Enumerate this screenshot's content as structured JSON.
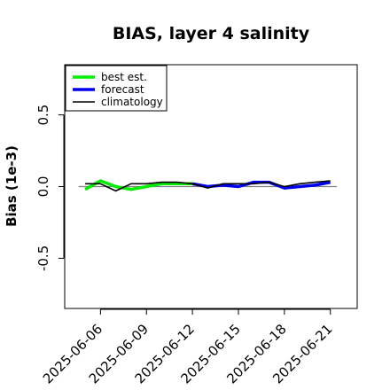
{
  "chart_data": {
    "type": "line",
    "title": "BIAS, layer 4 salinity",
    "xlabel": "",
    "ylabel": "Bias (1e-3)",
    "ylim": [
      -0.85,
      0.85
    ],
    "xlim": [
      "2025-06-03 16:00",
      "2025-06-22 18:00"
    ],
    "yticks": [
      -0.5,
      0.0,
      0.5
    ],
    "ytick_labels": [
      "-0.5",
      "0.0",
      "0.5"
    ],
    "xticks": [
      "2025-06-06",
      "2025-06-09",
      "2025-06-12",
      "2025-06-15",
      "2025-06-18",
      "2025-06-21"
    ],
    "xtick_labels": [
      "2025-06-06",
      "2025-06-09",
      "2025-06-12",
      "2025-06-15",
      "2025-06-18",
      "2025-06-21"
    ],
    "xtick_colors": [
      "#000000",
      "#000000",
      "#228B22",
      "#000000",
      "#000000",
      "#000000"
    ],
    "reference_line": 0.0,
    "legend_position": "top-left",
    "grid": false,
    "x": [
      "2025-06-05",
      "2025-06-06",
      "2025-06-07",
      "2025-06-08",
      "2025-06-09",
      "2025-06-10",
      "2025-06-11",
      "2025-06-12",
      "2025-06-13",
      "2025-06-14",
      "2025-06-15",
      "2025-06-16",
      "2025-06-17",
      "2025-06-18",
      "2025-06-19",
      "2025-06-20",
      "2025-06-21"
    ],
    "series": [
      {
        "name": "best est.",
        "color": "#00ee00",
        "values": [
          -0.02,
          0.04,
          0.0,
          -0.02,
          0.0,
          0.02,
          0.02,
          0.02,
          null,
          null,
          null,
          null,
          null,
          null,
          null,
          null,
          null
        ]
      },
      {
        "name": "forecast",
        "color": "#0000ee",
        "values": [
          null,
          null,
          null,
          null,
          null,
          null,
          null,
          0.02,
          0.0,
          0.01,
          0.0,
          0.03,
          0.03,
          -0.01,
          0.0,
          0.01,
          0.03
        ]
      },
      {
        "name": "climatology",
        "color": "#000000",
        "values": [
          0.02,
          0.02,
          -0.03,
          0.02,
          0.02,
          0.03,
          0.03,
          0.02,
          -0.01,
          0.02,
          0.02,
          0.02,
          0.03,
          0.0,
          0.02,
          0.03,
          0.04
        ]
      }
    ]
  }
}
